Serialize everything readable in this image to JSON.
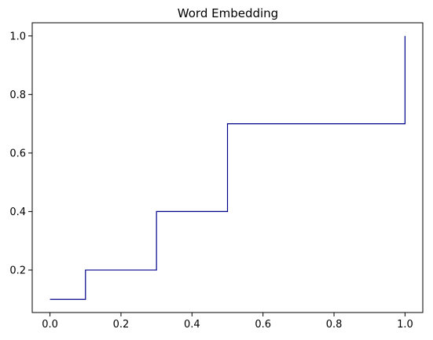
{
  "chart_data": {
    "type": "line",
    "drawstyle": "steps-post",
    "title": "Word Embedding",
    "xlabel": "",
    "ylabel": "",
    "xlim": [
      -0.05,
      1.05
    ],
    "ylim": [
      0.055,
      1.045
    ],
    "xticks": [
      0.0,
      0.2,
      0.4,
      0.6,
      0.8,
      1.0
    ],
    "xtick_labels": [
      "0.0",
      "0.2",
      "0.4",
      "0.6",
      "0.8",
      "1.0"
    ],
    "yticks": [
      0.2,
      0.4,
      0.6,
      0.8,
      1.0
    ],
    "ytick_labels": [
      "0.2",
      "0.4",
      "0.6",
      "0.8",
      "1.0"
    ],
    "grid": false,
    "legend": "none",
    "series": [
      {
        "color": "#00008b",
        "x": [
          0.0,
          0.1,
          0.3,
          0.5,
          1.0
        ],
        "y": [
          0.1,
          0.2,
          0.4,
          0.7,
          1.0
        ]
      }
    ]
  }
}
